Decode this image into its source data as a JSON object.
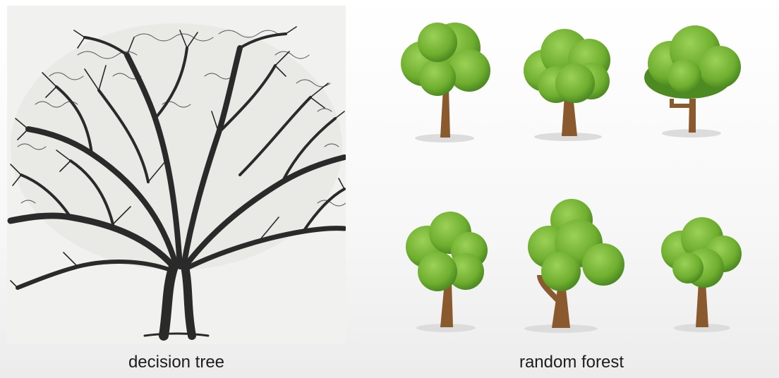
{
  "captions": {
    "left": "decision tree",
    "right": "random forest"
  },
  "colors": {
    "leaf_light": "#8fc94a",
    "leaf_mid": "#6fae2f",
    "leaf_dark": "#4d8a22",
    "trunk": "#8a5a2e",
    "trunk_dark": "#6b4220",
    "shadow": "#dcdcdc",
    "ink": "#2a2a2a"
  },
  "icons": {
    "decision_tree": "bare-branching-tree-illustration",
    "forest_trees": "green-cartoon-tree-icon"
  }
}
